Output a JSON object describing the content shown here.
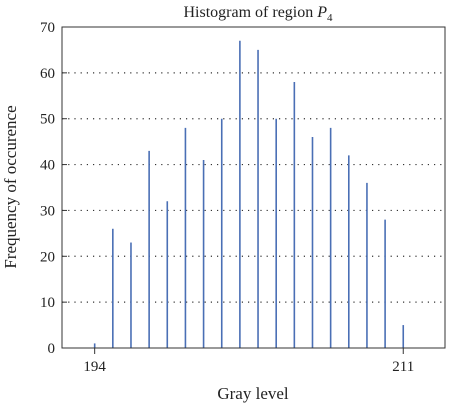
{
  "chart_data": {
    "type": "bar",
    "title_main": "Histogram of region ",
    "title_symbol": "P",
    "title_subscript": "4",
    "xlabel": "Gray level",
    "ylabel": "Frequency of occurence",
    "x": [
      194,
      195,
      196,
      197,
      198,
      199,
      200,
      201,
      202,
      203,
      204,
      205,
      206,
      207,
      208,
      209,
      210,
      211
    ],
    "values": [
      1,
      26,
      23,
      43,
      32,
      48,
      41,
      50,
      67,
      65,
      50,
      58,
      46,
      48,
      42,
      36,
      28,
      5
    ],
    "xlim": [
      192.2,
      213.3
    ],
    "ylim": [
      0,
      70
    ],
    "x_ticks": [
      194,
      211
    ],
    "y_ticks": [
      0,
      10,
      20,
      30,
      40,
      50,
      60,
      70
    ],
    "grid": "horizontal dotted",
    "bar_color": "#4a6fb5"
  }
}
